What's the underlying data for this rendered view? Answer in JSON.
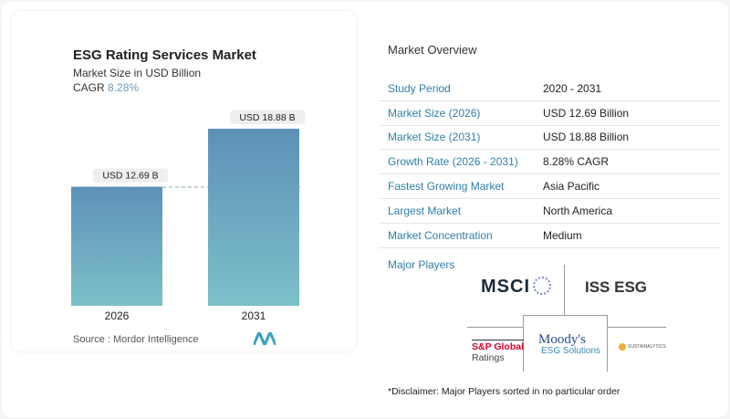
{
  "header": {
    "title": "ESG Rating Services Market",
    "subtitle": "Market Size in USD Billion",
    "cagr_label": "CAGR",
    "cagr_value": "8.28%"
  },
  "chart_data": {
    "type": "bar",
    "categories": [
      "2026",
      "2031"
    ],
    "values": [
      12.69,
      18.88
    ],
    "data_labels": [
      "USD 12.69 B",
      "USD 18.88 B"
    ],
    "ylim": [
      0,
      18.88
    ],
    "grid": false,
    "colors": [
      "#5e91b8",
      "#7cc0c9"
    ]
  },
  "source": "Source :  Mordor Intelligence",
  "overview": {
    "title": "Market Overview",
    "rows": [
      {
        "label": "Study Period",
        "value": "2020 - 2031"
      },
      {
        "label": "Market Size (2026)",
        "value": "USD 12.69 Billion"
      },
      {
        "label": "Market Size (2031)",
        "value": "USD 18.88 Billion"
      },
      {
        "label": "Growth Rate (2026 - 2031)",
        "value": "8.28% CAGR"
      },
      {
        "label": "Fastest Growing Market",
        "value": "Asia Pacific"
      },
      {
        "label": "Largest Market",
        "value": "North America"
      },
      {
        "label": "Market Concentration",
        "value": "Medium"
      }
    ]
  },
  "players": {
    "title": "Major Players",
    "logos": {
      "msci": "MSCI",
      "iss": "ISS ESG",
      "moodys": "Moody's",
      "moodys_sub": "ESG Solutions",
      "sp1": "S&P Global",
      "sp2": "Ratings",
      "sustain": "SUSTAINALYTICS"
    }
  },
  "disclaimer": "*Disclaimer: Major Players sorted in no particular order"
}
